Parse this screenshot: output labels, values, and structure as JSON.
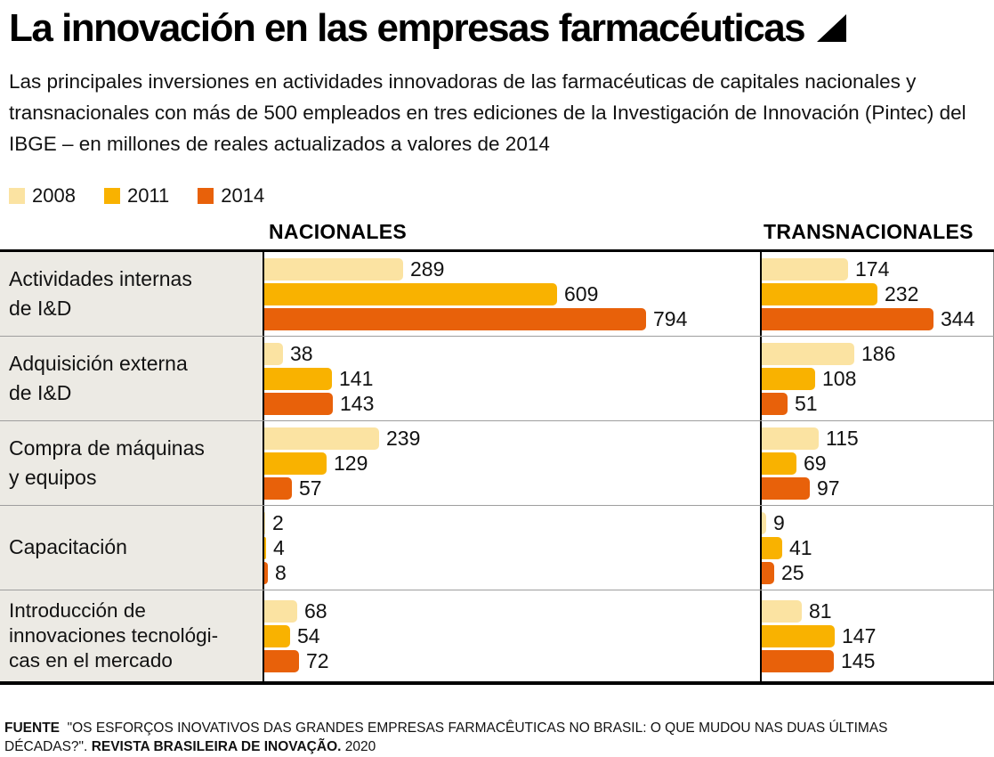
{
  "title": "La innovación en las empresas farmacéuticas",
  "subtitle": "Las principales inversiones en actividades innovadoras de las farmacéuticas de capitales nacionales y transnacionales con más de 500 empleados en tres ediciones de la Investigación de Innovación (Pintec) del IBGE – en millones de reales actualizados a valores de 2014",
  "legend": [
    {
      "label": "2008",
      "color": "#FBE3A2"
    },
    {
      "label": "2011",
      "color": "#F9B200"
    },
    {
      "label": "2014",
      "color": "#E8610A"
    }
  ],
  "columns": {
    "nacionales": "NACIONALES",
    "transnacionales": "TRANSNACIONALES"
  },
  "chart_data": {
    "type": "bar",
    "orientation": "horizontal",
    "title": "La innovación en las empresas farmacéuticas",
    "unit": "millones de reales actualizados a valores de 2014",
    "series_labels": [
      "2008",
      "2011",
      "2014"
    ],
    "series_colors": [
      "#FBE3A2",
      "#F9B200",
      "#E8610A"
    ],
    "groups": [
      "NACIONALES",
      "TRANSNACIONALES"
    ],
    "categories": [
      "Actividades internas de I&D",
      "Adquisición externa de I&D",
      "Compra de máquinas y equipos",
      "Capacitación",
      "Introducción de innovaciones tecnológicas en el mercado"
    ],
    "values": {
      "NACIONALES": [
        [
          289,
          609,
          794
        ],
        [
          38,
          141,
          143
        ],
        [
          239,
          129,
          57
        ],
        [
          2,
          4,
          8
        ],
        [
          68,
          54,
          72
        ]
      ],
      "TRANSNACIONALES": [
        [
          174,
          232,
          344
        ],
        [
          186,
          108,
          51
        ],
        [
          115,
          69,
          97
        ],
        [
          9,
          41,
          25
        ],
        [
          81,
          147,
          145
        ]
      ]
    },
    "legend_position": "top-left",
    "grid": false
  },
  "rows": [
    {
      "label_lines": [
        "Actividades internas",
        "de I&D"
      ]
    },
    {
      "label_lines": [
        "Adquisición externa",
        "de I&D"
      ]
    },
    {
      "label_lines": [
        "Compra de máquinas",
        "y equipos"
      ]
    },
    {
      "label_lines": [
        "Capacitación"
      ]
    },
    {
      "label_lines": [
        "Introducción de",
        "innovaciones tecnológi-",
        "cas en el mercado"
      ]
    }
  ],
  "footer": {
    "label": "FUENTE",
    "text": "\"OS ESFORÇOS INOVATIVOS DAS GRANDES EMPRESAS FARMACÊUTICAS NO BRASIL: O QUE MUDOU NAS DUAS ÚLTIMAS DÉCADAS?\".",
    "journal": "REVISTA BRASILEIRA DE INOVAÇÃO.",
    "year": "2020"
  }
}
